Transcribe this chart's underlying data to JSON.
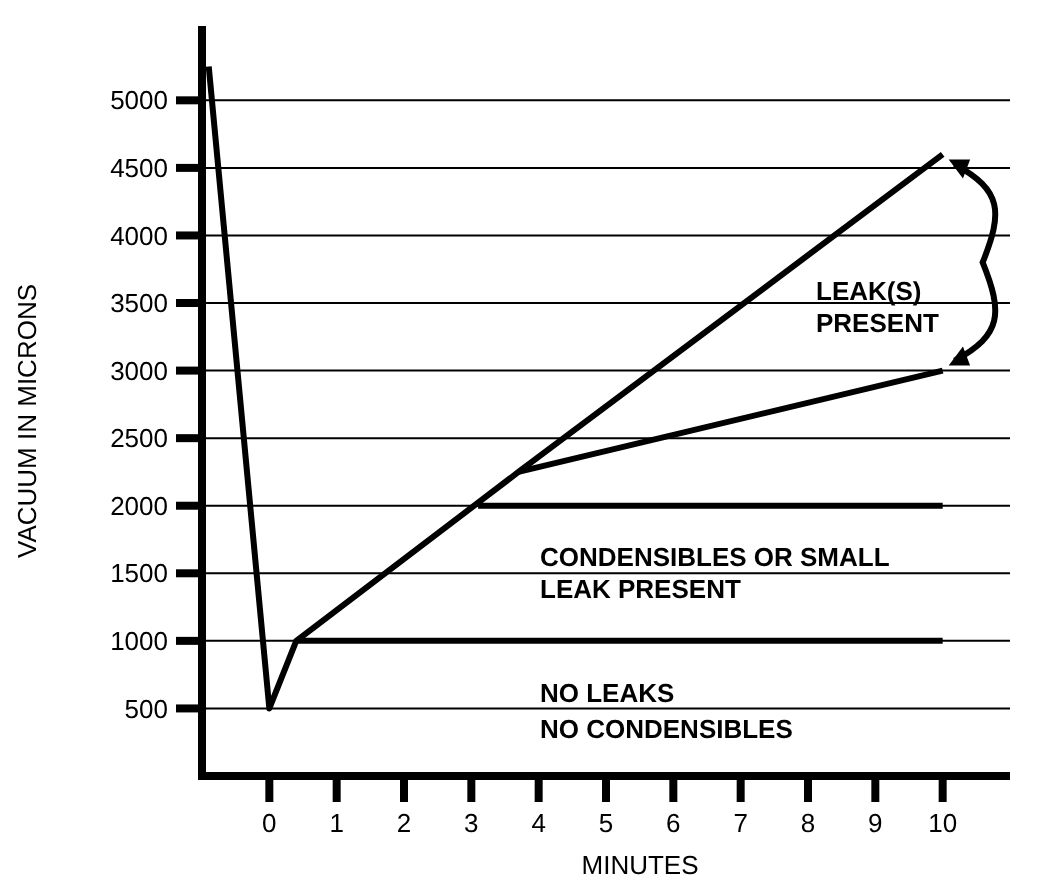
{
  "chart_data": {
    "type": "line",
    "xlabel": "MINUTES",
    "ylabel": "VACUUM IN MICRONS",
    "xlim": [
      -1,
      11
    ],
    "ylim": [
      0,
      5550
    ],
    "xticks": [
      0,
      1,
      2,
      3,
      4,
      5,
      6,
      7,
      8,
      9,
      10
    ],
    "yticks": [
      500,
      1000,
      1500,
      2000,
      2500,
      3000,
      3500,
      4000,
      4500,
      5000
    ],
    "grid": "y",
    "series": [
      {
        "color": "#000000",
        "x": [
          -0.9,
          0,
          0.4,
          3.7,
          10
        ],
        "values": [
          5250,
          500,
          1000,
          2250,
          4600
        ]
      },
      {
        "color": "#000000",
        "x": [
          0.4,
          10
        ],
        "values": [
          1000,
          1000
        ]
      },
      {
        "color": "#000000",
        "x": [
          3.1,
          10
        ],
        "values": [
          2000,
          2000
        ]
      },
      {
        "color": "#000000",
        "x": [
          3.7,
          10
        ],
        "values": [
          2250,
          3000
        ]
      }
    ],
    "annotations": [
      "LEAK(S)\nPRESENT",
      "CONDENSIBLES OR SMALL\nLEAK PRESENT",
      "NO LEAKS\nNO CONDENSIBLES"
    ]
  }
}
